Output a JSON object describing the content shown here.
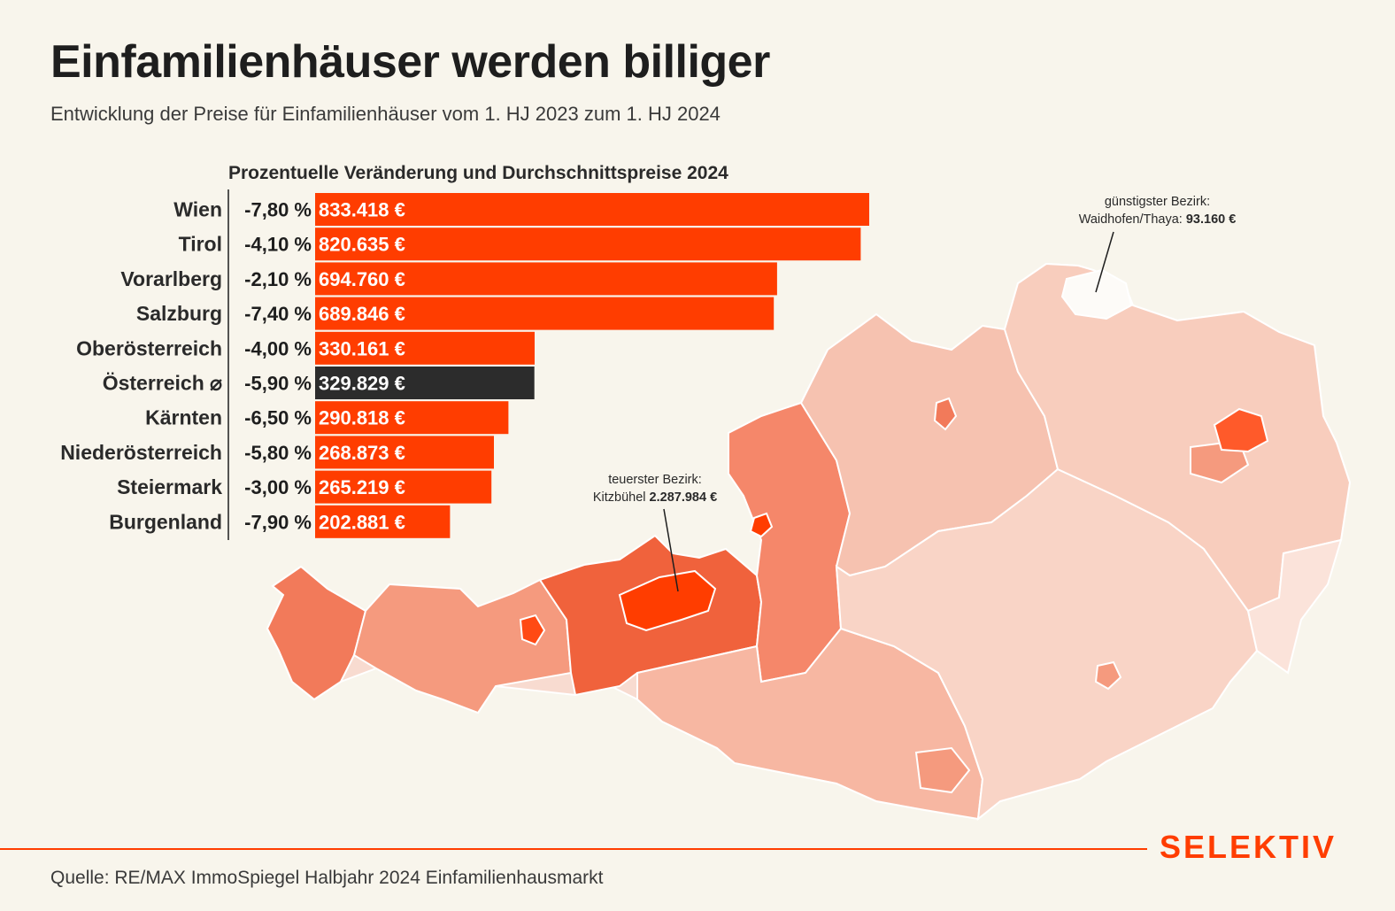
{
  "header": {
    "title": "Einfamilienhäuser werden billiger",
    "subtitle": "Entwicklung der Preise für Einfamilienhäuser vom 1. HJ 2023 zum 1. HJ 2024"
  },
  "chart_data": {
    "type": "bar",
    "orientation": "horizontal",
    "title": "Prozentuelle Veränderung und Durchschnittspreise 2024",
    "categories": [
      "Wien",
      "Tirol",
      "Vorarlberg",
      "Salzburg",
      "Oberösterreich",
      "Österreich ⌀",
      "Kärnten",
      "Niederösterreich",
      "Steiermark",
      "Burgenland"
    ],
    "change_labels": [
      "-7,80 %",
      "-4,10 %",
      "-2,10 %",
      "-7,40 %",
      "-4,00 %",
      "-5,90 %",
      "-6,50 %",
      "-5,80 %",
      "-3,00 %",
      "-7,90 %"
    ],
    "change_values": [
      -7.8,
      -4.1,
      -2.1,
      -7.4,
      -4.0,
      -5.9,
      -6.5,
      -5.8,
      -3.0,
      -7.9
    ],
    "price_labels": [
      "833.418 €",
      "820.635 €",
      "694.760 €",
      "689.846 €",
      "330.161 €",
      "329.829 €",
      "290.818 €",
      "268.873 €",
      "265.219 €",
      "202.881 €"
    ],
    "values": [
      833418,
      820635,
      694760,
      689846,
      330161,
      329829,
      290818,
      268873,
      265219,
      202881
    ],
    "highlight_category": "Österreich ⌀",
    "colors": {
      "bar": "#ff3d00",
      "highlight": "#2c2c2c"
    },
    "xlim": [
      0,
      833418
    ]
  },
  "map": {
    "annotation_cheapest": {
      "line1": "günstigster Bezirk:",
      "name": "Waidhofen/Thaya: ",
      "value": "93.160 €"
    },
    "annotation_expensive": {
      "line1": "teuerster Bezirk:",
      "name": "Kitzbühel ",
      "value": "2.287.984 €"
    }
  },
  "footer": {
    "source": "Quelle: RE/MAX ImmoSpiegel Halbjahr 2024 Einfamilienhausmarkt",
    "brand": "SELEKTIV",
    "brand_color": "#ff3d00"
  }
}
